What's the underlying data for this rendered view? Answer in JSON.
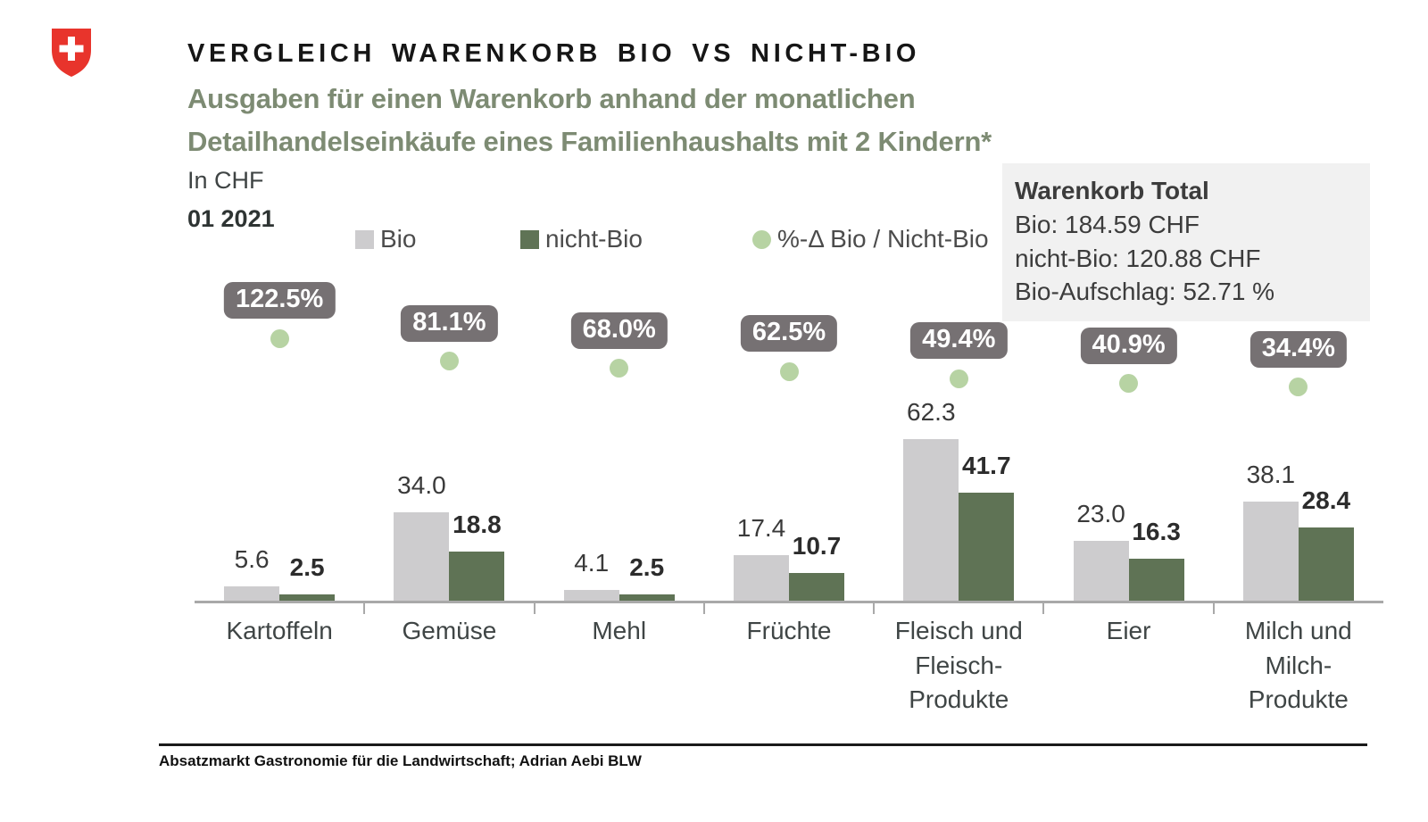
{
  "header": {
    "title": "VERGLEICH WARENKORB BIO VS NICHT-BIO",
    "subtitle_line1": "Ausgaben für einen Warenkorb anhand der monatlichen",
    "subtitle_line2": "Detailhandelseinkäufe eines Familienhaushalts mit 2 Kindern*",
    "unit_label": "In CHF",
    "period_label": "01 2021",
    "logo": "swiss-federal-cross"
  },
  "summary_box": {
    "title": "Warenkorb Total",
    "line1": "Bio: 184.59 CHF",
    "line2": "nicht-Bio: 120.88 CHF",
    "line3": "Bio-Aufschlag: 52.71 %"
  },
  "legend": {
    "bio_label": "Bio",
    "nicht_bio_label": "nicht-Bio",
    "delta_label": "%-Δ Bio / Nicht-Bio"
  },
  "chart_data": {
    "type": "bar",
    "title": "Vergleich Warenkorb Bio vs Nicht-Bio",
    "xlabel": "",
    "ylabel": "In CHF",
    "grid": false,
    "legend_position": "top",
    "categories": [
      "Kartoffeln",
      "Gemüse",
      "Mehl",
      "Früchte",
      "Fleisch und\nFleisch-\nProdukte",
      "Eier",
      "Milch und\nMilch-\nProdukte"
    ],
    "series": [
      {
        "name": "Bio",
        "color": "#cdccce",
        "values": [
          5.6,
          34.0,
          4.1,
          17.4,
          62.3,
          23.0,
          38.1
        ]
      },
      {
        "name": "nicht-Bio",
        "color": "#5f7355",
        "values": [
          2.5,
          18.8,
          2.5,
          10.7,
          41.7,
          16.3,
          28.4
        ]
      }
    ],
    "delta_percent": {
      "name": "%-Δ Bio / Nicht-Bio",
      "values": [
        122.5,
        81.1,
        68.0,
        62.5,
        49.4,
        40.9,
        34.4
      ],
      "dot_color": "#b7d3a3",
      "badge_color": "#767173"
    },
    "ylim": [
      0,
      65
    ]
  },
  "colors": {
    "bio_bar": "#cdccce",
    "nicht_bio_bar": "#5f7355",
    "delta_dot": "#b7d3a3",
    "badge": "#767173",
    "subtitle_green": "#7d8b73",
    "axis": "#a9a9a9",
    "box_background": "#f1f1f1",
    "swiss_red": "#e8342c"
  },
  "footer": {
    "source": "Absatzmarkt Gastronomie für die Landwirtschaft; Adrian Aebi BLW"
  }
}
